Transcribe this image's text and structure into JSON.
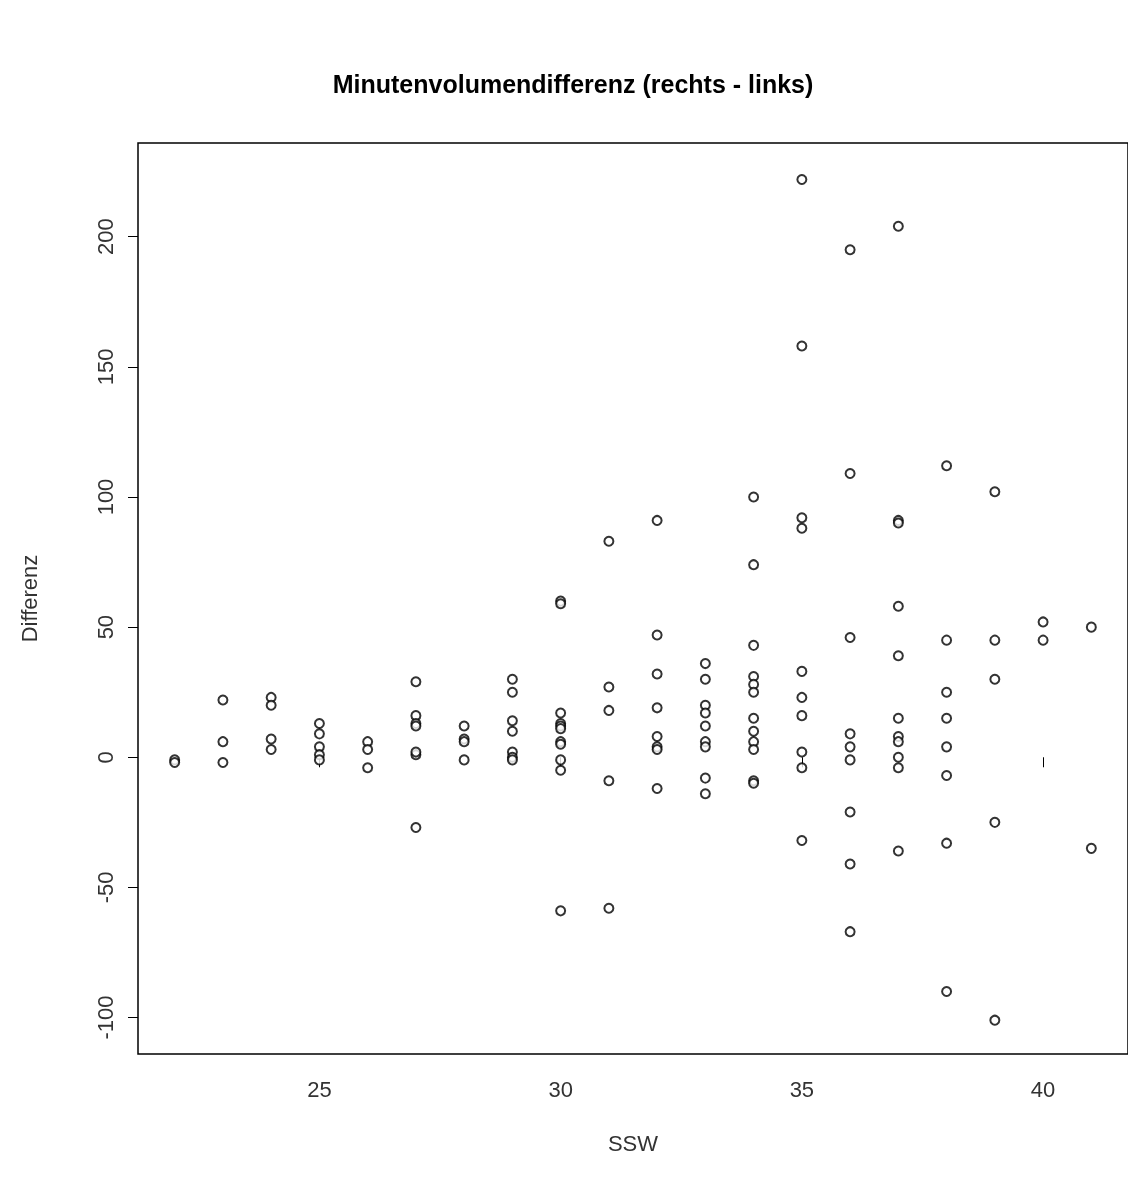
{
  "chart_data": {
    "type": "scatter",
    "title": "Minutenvolumendifferenz (rechts - links)",
    "xlabel": "SSW",
    "ylabel": "Differenz",
    "xlim": [
      21.24,
      41.76
    ],
    "xticks": [
      25,
      30,
      35,
      40
    ],
    "ylim": [
      -114,
      236
    ],
    "yticks": [
      -100,
      -50,
      0,
      50,
      100,
      150,
      200
    ],
    "grid": false,
    "marker": "circle",
    "series": [
      {
        "color": "#000000",
        "x": [
          22,
          22,
          23,
          23,
          23,
          24,
          24,
          24,
          24,
          25,
          25,
          25,
          25,
          25,
          26,
          26,
          26,
          27,
          27,
          27,
          27,
          27,
          27,
          27,
          28,
          28,
          28,
          28,
          29,
          29,
          29,
          29,
          29,
          29,
          29,
          30,
          30,
          30,
          30,
          30,
          30,
          30,
          30,
          30,
          30,
          30,
          31,
          31,
          31,
          31,
          31,
          32,
          32,
          32,
          32,
          32,
          32,
          32,
          32,
          33,
          33,
          33,
          33,
          33,
          33,
          33,
          33,
          33,
          34,
          34,
          34,
          34,
          34,
          34,
          34,
          34,
          34,
          34,
          34,
          34,
          35,
          35,
          35,
          35,
          35,
          35,
          35,
          35,
          35,
          35,
          36,
          36,
          36,
          36,
          36,
          36,
          36,
          36,
          36,
          37,
          37,
          37,
          37,
          37,
          37,
          37,
          37,
          37,
          37,
          37,
          38,
          38,
          38,
          38,
          38,
          38,
          38,
          38,
          39,
          39,
          39,
          39,
          39,
          40,
          40,
          41,
          41
        ],
        "values": [
          -1,
          -2,
          22,
          6,
          -2,
          23,
          20,
          7,
          3,
          13,
          9,
          4,
          1,
          -1,
          6,
          3,
          -4,
          29,
          16,
          13,
          12,
          1,
          2,
          -27,
          12,
          7,
          6,
          -1,
          30,
          25,
          14,
          10,
          2,
          0,
          -1,
          60,
          59,
          17,
          13,
          12,
          11,
          6,
          5,
          -1,
          -5,
          -59,
          83,
          27,
          18,
          -9,
          -58,
          91,
          47,
          32,
          19,
          8,
          4,
          3,
          -12,
          36,
          30,
          20,
          17,
          12,
          6,
          4,
          -8,
          -14,
          100,
          74,
          43,
          31,
          28,
          25,
          15,
          10,
          6,
          3,
          -9,
          -10,
          222,
          158,
          92,
          88,
          33,
          23,
          16,
          2,
          -4,
          -32,
          195,
          109,
          46,
          9,
          4,
          -1,
          -21,
          -41,
          -67,
          204,
          91,
          90,
          58,
          39,
          15,
          8,
          6,
          0,
          -4,
          -36,
          112,
          45,
          25,
          15,
          4,
          -7,
          -33,
          -90,
          102,
          45,
          30,
          -25,
          -101,
          52,
          45,
          50,
          -35
        ]
      }
    ]
  }
}
